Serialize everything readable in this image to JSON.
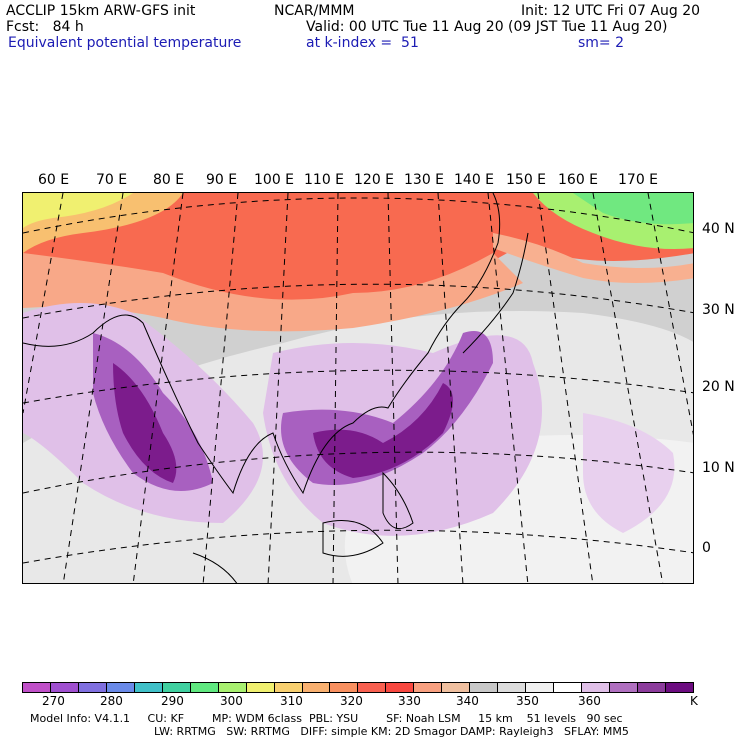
{
  "header": {
    "left1": "ACCLIP 15km ARW-GFS init",
    "left2": "Fcst:   84 h",
    "left3": "Equivalent potential temperature",
    "center1": "NCAR/MMM",
    "right1": "Init: 12 UTC Fri 07 Aug 20",
    "right2": "Valid: 00 UTC Tue 11 Aug 20 (09 JST Tue 11 Aug 20)",
    "right3a": "at k-index =  51",
    "right3b": "sm= 2"
  },
  "map": {
    "lon_labels": [
      "60 E",
      "70 E",
      "80 E",
      "90 E",
      "100 E",
      "110 E",
      "120 E",
      "130 E",
      "140 E",
      "150 E",
      "160 E",
      "170 E"
    ],
    "lat_labels": [
      "40 N",
      "30 N",
      "20 N",
      "10 N",
      "0"
    ]
  },
  "colorbar": {
    "colors": [
      "#c050c8",
      "#a050d0",
      "#8070e0",
      "#6a8ae8",
      "#40c0c8",
      "#40d0a0",
      "#60e880",
      "#a8f070",
      "#f0f070",
      "#f8d070",
      "#f8b070",
      "#f89060",
      "#f86050",
      "#f84840",
      "#f8a080",
      "#f0c0a0",
      "#c8c8c8",
      "#dcdcdc",
      "#f0f0f0",
      "#ffffff",
      "#e0c0e8",
      "#b070c0",
      "#8c3c9c",
      "#6c0c80"
    ],
    "labels": [
      "270",
      "280",
      "290",
      "300",
      "310",
      "320",
      "330",
      "340",
      "350",
      "360",
      "K"
    ]
  },
  "footer": {
    "line1": "Model Info: V4.1.1     CU: KF        MP: WDM 6class  PBL: YSU        SF: Noah LSM     15 km    51 levels   90 sec",
    "line2": "LW: RRTMG   SW: RRTMG   DIFF: simple KM: 2D Smagor DAMP: Rayleigh3   SFLAY: MM5"
  }
}
